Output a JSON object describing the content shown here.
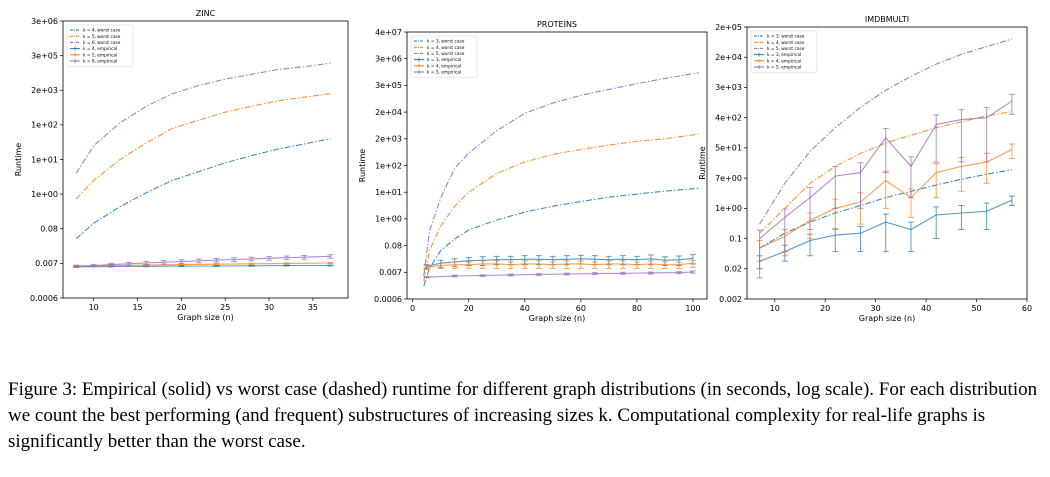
{
  "caption": {
    "label": "Figure 3:",
    "text": "Empirical (solid) vs worst case (dashed) runtime for different graph distributions (in seconds, log scale). For each distribution we count the best performing (and frequent) substructures of increasing sizes k. Computational complexity for real-life graphs is significantly better than the worst case."
  },
  "chart_data": [
    {
      "type": "line",
      "title": "ZINC",
      "xlabel": "Graph size (n)",
      "ylabel": "Runtime",
      "xlim": [
        6.5,
        39
      ],
      "yscale": "log",
      "yticks": [
        "0.0006",
        "0.007",
        "0.08",
        "1e+00",
        "1e+01",
        "1e+02",
        "2e+03",
        "3e+05",
        "3e+06"
      ],
      "xticks": [
        10,
        15,
        20,
        25,
        30,
        35
      ],
      "legend_position": "top-left",
      "series": [
        {
          "name": "k = 4, worst case",
          "color": "#1f77b4",
          "style": "dashdot",
          "x": [
            8,
            10,
            13,
            16,
            19,
            22,
            25,
            28,
            31,
            34,
            37
          ],
          "y": [
            0.04,
            0.12,
            0.4,
            1.1,
            2.5,
            4.5,
            8,
            13,
            20,
            28,
            40
          ]
        },
        {
          "name": "k = 5, worst case",
          "color": "#ff7f0e",
          "style": "dashdot",
          "x": [
            8,
            10,
            13,
            16,
            19,
            22,
            25,
            28,
            31,
            34,
            37
          ],
          "y": [
            0.7,
            2.5,
            10,
            30,
            80,
            150,
            300,
            500,
            800,
            1100,
            1500
          ]
        },
        {
          "name": "k = 6, worst case",
          "color": "#9467bd",
          "style": "dashdot",
          "x": [
            8,
            10,
            13,
            16,
            19,
            22,
            25,
            28,
            31,
            34,
            37
          ],
          "y": [
            4,
            25,
            120,
            500,
            1500,
            4000,
            10000,
            20000,
            40000,
            60000,
            100000
          ]
        },
        {
          "name": "k = 4, empirical",
          "color": "#1f77b4",
          "style": "solid",
          "x": [
            8,
            12,
            16,
            20,
            24,
            28,
            32,
            37
          ],
          "y": [
            0.0055,
            0.0056,
            0.0057,
            0.0058,
            0.0058,
            0.0059,
            0.006,
            0.006
          ],
          "err": [
            0.0002,
            0.0002,
            0.0002,
            0.0002,
            0.0002,
            0.0002,
            0.0002,
            0.0002
          ]
        },
        {
          "name": "k = 5, empirical",
          "color": "#ff7f0e",
          "style": "solid",
          "x": [
            8,
            12,
            16,
            20,
            24,
            28,
            32,
            37
          ],
          "y": [
            0.0058,
            0.006,
            0.0062,
            0.0064,
            0.0066,
            0.0068,
            0.007,
            0.0072
          ],
          "err": [
            0.0003,
            0.0003,
            0.0003,
            0.0003,
            0.0003,
            0.0003,
            0.0003,
            0.0003
          ]
        },
        {
          "name": "k = 6, empirical",
          "color": "#9467bd",
          "style": "solid",
          "x": [
            8,
            10,
            12,
            14,
            16,
            18,
            20,
            22,
            24,
            26,
            28,
            30,
            32,
            34,
            37
          ],
          "y": [
            0.0057,
            0.006,
            0.0064,
            0.0068,
            0.0072,
            0.0076,
            0.008,
            0.0084,
            0.0088,
            0.0092,
            0.0096,
            0.01,
            0.0104,
            0.0108,
            0.0115
          ],
          "err": [
            0.0004,
            0.0005,
            0.0006,
            0.0007,
            0.0008,
            0.0009,
            0.001,
            0.0011,
            0.0011,
            0.0012,
            0.0012,
            0.0013,
            0.0013,
            0.0014,
            0.0014
          ]
        }
      ]
    },
    {
      "type": "line",
      "title": "PROTEINS",
      "xlabel": "Graph size (n)",
      "ylabel": "Runtime",
      "xlim": [
        -2,
        105
      ],
      "yscale": "log",
      "yticks": [
        "0.0006",
        "0.007",
        "0.08",
        "1e+00",
        "1e+01",
        "1e+02",
        "2e+03",
        "2e+04",
        "3e+05",
        "3e+06",
        "4e+07"
      ],
      "xticks": [
        0,
        20,
        40,
        60,
        80,
        100
      ],
      "legend_position": "top-left",
      "series": [
        {
          "name": "k = 3, worst case",
          "color": "#1f77b4",
          "style": "dashdot",
          "x": [
            4,
            6,
            10,
            15,
            20,
            30,
            40,
            50,
            60,
            70,
            80,
            90,
            102
          ],
          "y": [
            0.002,
            0.01,
            0.05,
            0.15,
            0.35,
            0.9,
            1.8,
            3,
            4.5,
            6.5,
            8.5,
            11,
            14
          ]
        },
        {
          "name": "k = 4, worst case",
          "color": "#ff7f0e",
          "style": "dashdot",
          "x": [
            4,
            6,
            10,
            15,
            20,
            30,
            40,
            50,
            60,
            70,
            80,
            90,
            102
          ],
          "y": [
            0.003,
            0.05,
            0.5,
            3,
            10,
            50,
            150,
            350,
            600,
            1000,
            1500,
            2000,
            3000
          ]
        },
        {
          "name": "k = 5, worst case",
          "color": "#9467bd",
          "style": "dashdot",
          "x": [
            4,
            6,
            10,
            15,
            20,
            30,
            40,
            50,
            60,
            70,
            80,
            90,
            102
          ],
          "y": [
            0.005,
            0.3,
            6,
            80,
            400,
            4000,
            18000,
            50000,
            110000,
            200000,
            350000,
            550000,
            900000
          ]
        },
        {
          "name": "k = 3, empirical",
          "color": "#1f77b4",
          "style": "solid",
          "x": [
            5,
            10,
            15,
            20,
            25,
            30,
            35,
            40,
            45,
            50,
            55,
            60,
            65,
            70,
            75,
            80,
            85,
            90,
            95,
            100
          ],
          "y": [
            0.012,
            0.016,
            0.018,
            0.02,
            0.021,
            0.022,
            0.022,
            0.023,
            0.023,
            0.022,
            0.023,
            0.024,
            0.023,
            0.022,
            0.023,
            0.022,
            0.024,
            0.021,
            0.022,
            0.025
          ],
          "err": [
            0.002,
            0.005,
            0.006,
            0.007,
            0.008,
            0.008,
            0.008,
            0.009,
            0.009,
            0.008,
            0.009,
            0.009,
            0.009,
            0.008,
            0.009,
            0.008,
            0.01,
            0.008,
            0.009,
            0.01
          ]
        },
        {
          "name": "k = 4, empirical",
          "color": "#ff7f0e",
          "style": "solid",
          "x": [
            5,
            10,
            15,
            20,
            25,
            30,
            35,
            40,
            45,
            50,
            55,
            60,
            65,
            70,
            75,
            80,
            85,
            90,
            95,
            100
          ],
          "y": [
            0.011,
            0.013,
            0.014,
            0.014,
            0.015,
            0.015,
            0.014,
            0.015,
            0.015,
            0.014,
            0.015,
            0.015,
            0.014,
            0.015,
            0.015,
            0.014,
            0.015,
            0.014,
            0.014,
            0.016
          ],
          "err": [
            0.002,
            0.003,
            0.004,
            0.004,
            0.005,
            0.005,
            0.004,
            0.005,
            0.005,
            0.004,
            0.005,
            0.005,
            0.004,
            0.005,
            0.005,
            0.004,
            0.005,
            0.004,
            0.004,
            0.005
          ]
        },
        {
          "name": "k = 5, empirical",
          "color": "#9467bd",
          "style": "solid",
          "x": [
            5,
            15,
            25,
            35,
            45,
            55,
            65,
            75,
            85,
            95,
            100
          ],
          "y": [
            0.0045,
            0.005,
            0.0052,
            0.0055,
            0.0057,
            0.006,
            0.0062,
            0.0064,
            0.0066,
            0.0068,
            0.0072
          ],
          "err": [
            0.0003,
            0.0004,
            0.0004,
            0.0005,
            0.0005,
            0.0005,
            0.0006,
            0.0006,
            0.0006,
            0.0006,
            0.0007
          ]
        }
      ]
    },
    {
      "type": "line",
      "title": "IMDBMULTI",
      "xlabel": "Graph size (n)",
      "ylabel": "Runtime",
      "xlim": [
        4.5,
        60
      ],
      "yscale": "log",
      "yticks": [
        "0.002",
        "0.02",
        "0.1",
        "1e+00",
        "7e+00",
        "5e+01",
        "4e+02",
        "3e+03",
        "2e+04",
        "2e+05"
      ],
      "xticks": [
        10,
        20,
        30,
        40,
        50,
        60
      ],
      "legend_position": "top-left",
      "series": [
        {
          "name": "k = 3, worst case",
          "color": "#1f77b4",
          "style": "dashdot",
          "x": [
            7,
            12,
            17,
            22,
            27,
            32,
            37,
            42,
            47,
            52,
            57
          ],
          "y": [
            0.06,
            0.15,
            0.35,
            0.7,
            1.2,
            2,
            3,
            4.5,
            6.5,
            9,
            12
          ]
        },
        {
          "name": "k = 4, worst case",
          "color": "#ff7f0e",
          "style": "dashdot",
          "x": [
            7,
            12,
            17,
            22,
            27,
            32,
            37,
            42,
            47,
            52,
            57
          ],
          "y": [
            0.15,
            1,
            5,
            15,
            35,
            70,
            120,
            200,
            300,
            450,
            600
          ]
        },
        {
          "name": "k = 5, worst case",
          "color": "#9467bd",
          "style": "dashdot",
          "x": [
            7,
            12,
            17,
            22,
            27,
            32,
            37,
            42,
            47,
            52,
            57
          ],
          "y": [
            0.3,
            5,
            40,
            200,
            800,
            2500,
            6000,
            13000,
            25000,
            45000,
            80000
          ]
        },
        {
          "name": "k = 3, empirical",
          "color": "#1f77b4",
          "style": "solid",
          "x": [
            7,
            12,
            17,
            22,
            27,
            32,
            37,
            42,
            47,
            52,
            57
          ],
          "y": [
            0.03,
            0.05,
            0.09,
            0.13,
            0.15,
            0.35,
            0.2,
            0.6,
            0.7,
            0.8,
            1.7
          ],
          "err": [
            0.01,
            0.02,
            0.05,
            0.08,
            0.1,
            0.3,
            0.15,
            0.5,
            0.5,
            0.6,
            0.5
          ]
        },
        {
          "name": "k = 4, empirical",
          "color": "#ff7f0e",
          "style": "solid",
          "x": [
            7,
            12,
            17,
            22,
            27,
            32,
            37,
            42,
            47,
            52,
            57
          ],
          "y": [
            0.06,
            0.12,
            0.4,
            1,
            1.5,
            6,
            2,
            10,
            15,
            20,
            45
          ],
          "err": [
            0.03,
            0.08,
            0.3,
            0.8,
            1.2,
            5,
            1.5,
            8,
            12,
            15,
            20
          ]
        },
        {
          "name": "k = 5, empirical",
          "color": "#9467bd",
          "style": "solid",
          "x": [
            7,
            12,
            17,
            22,
            27,
            32,
            37,
            42,
            47,
            52,
            57
          ],
          "y": [
            0.1,
            0.5,
            2,
            8,
            10,
            100,
            15,
            250,
            350,
            400,
            1200
          ],
          "err": [
            0.09,
            0.45,
            1.8,
            7,
            9,
            90,
            13,
            230,
            330,
            380,
            700
          ]
        }
      ]
    }
  ]
}
